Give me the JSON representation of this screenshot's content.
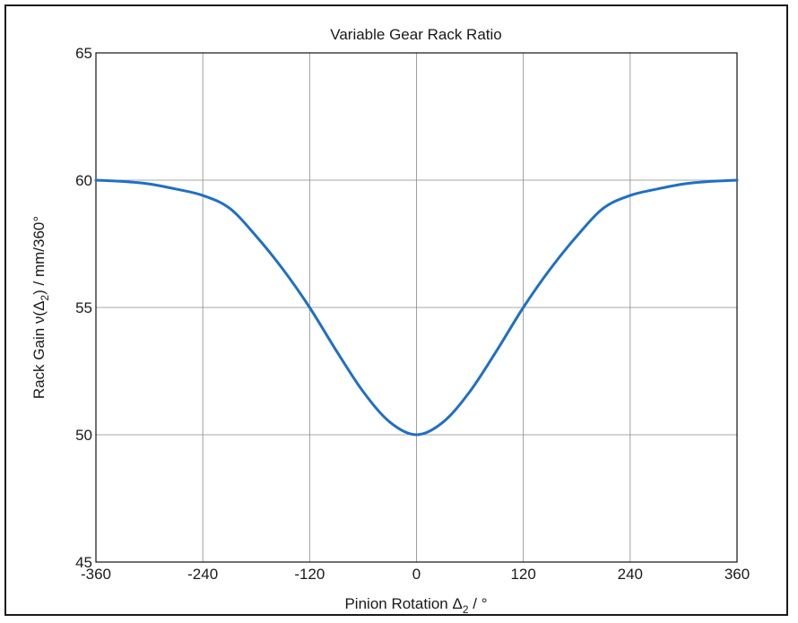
{
  "chart_data": {
    "type": "line",
    "title": "Variable Gear Rack Ratio",
    "xlabel_parts": {
      "prefix": "Pinion Rotation Δ",
      "sub": "2",
      "suffix": " / °"
    },
    "ylabel_parts": {
      "prefix": "Rack Gain  ν(Δ",
      "sub": "2",
      "suffix": ") / mm/360°"
    },
    "xlim": [
      -360,
      360
    ],
    "ylim": [
      45,
      65
    ],
    "x_ticks": [
      -360,
      -240,
      -120,
      0,
      120,
      240,
      360
    ],
    "y_ticks": [
      45,
      50,
      55,
      60,
      65
    ],
    "grid": true,
    "line_color": "#1f6fc5",
    "series": [
      {
        "x": [
          -360,
          -330,
          -300,
          -270,
          -240,
          -210,
          -180,
          -150,
          -120,
          -90,
          -60,
          -30,
          0,
          30,
          60,
          90,
          120,
          150,
          180,
          210,
          240,
          270,
          300,
          330,
          360
        ],
        "y": [
          60.0,
          59.95,
          59.85,
          59.65,
          59.4,
          58.9,
          57.8,
          56.5,
          55.0,
          53.3,
          51.7,
          50.5,
          50.0,
          50.5,
          51.7,
          53.3,
          55.0,
          56.5,
          57.8,
          58.9,
          59.4,
          59.65,
          59.85,
          59.95,
          60.0
        ]
      }
    ]
  }
}
